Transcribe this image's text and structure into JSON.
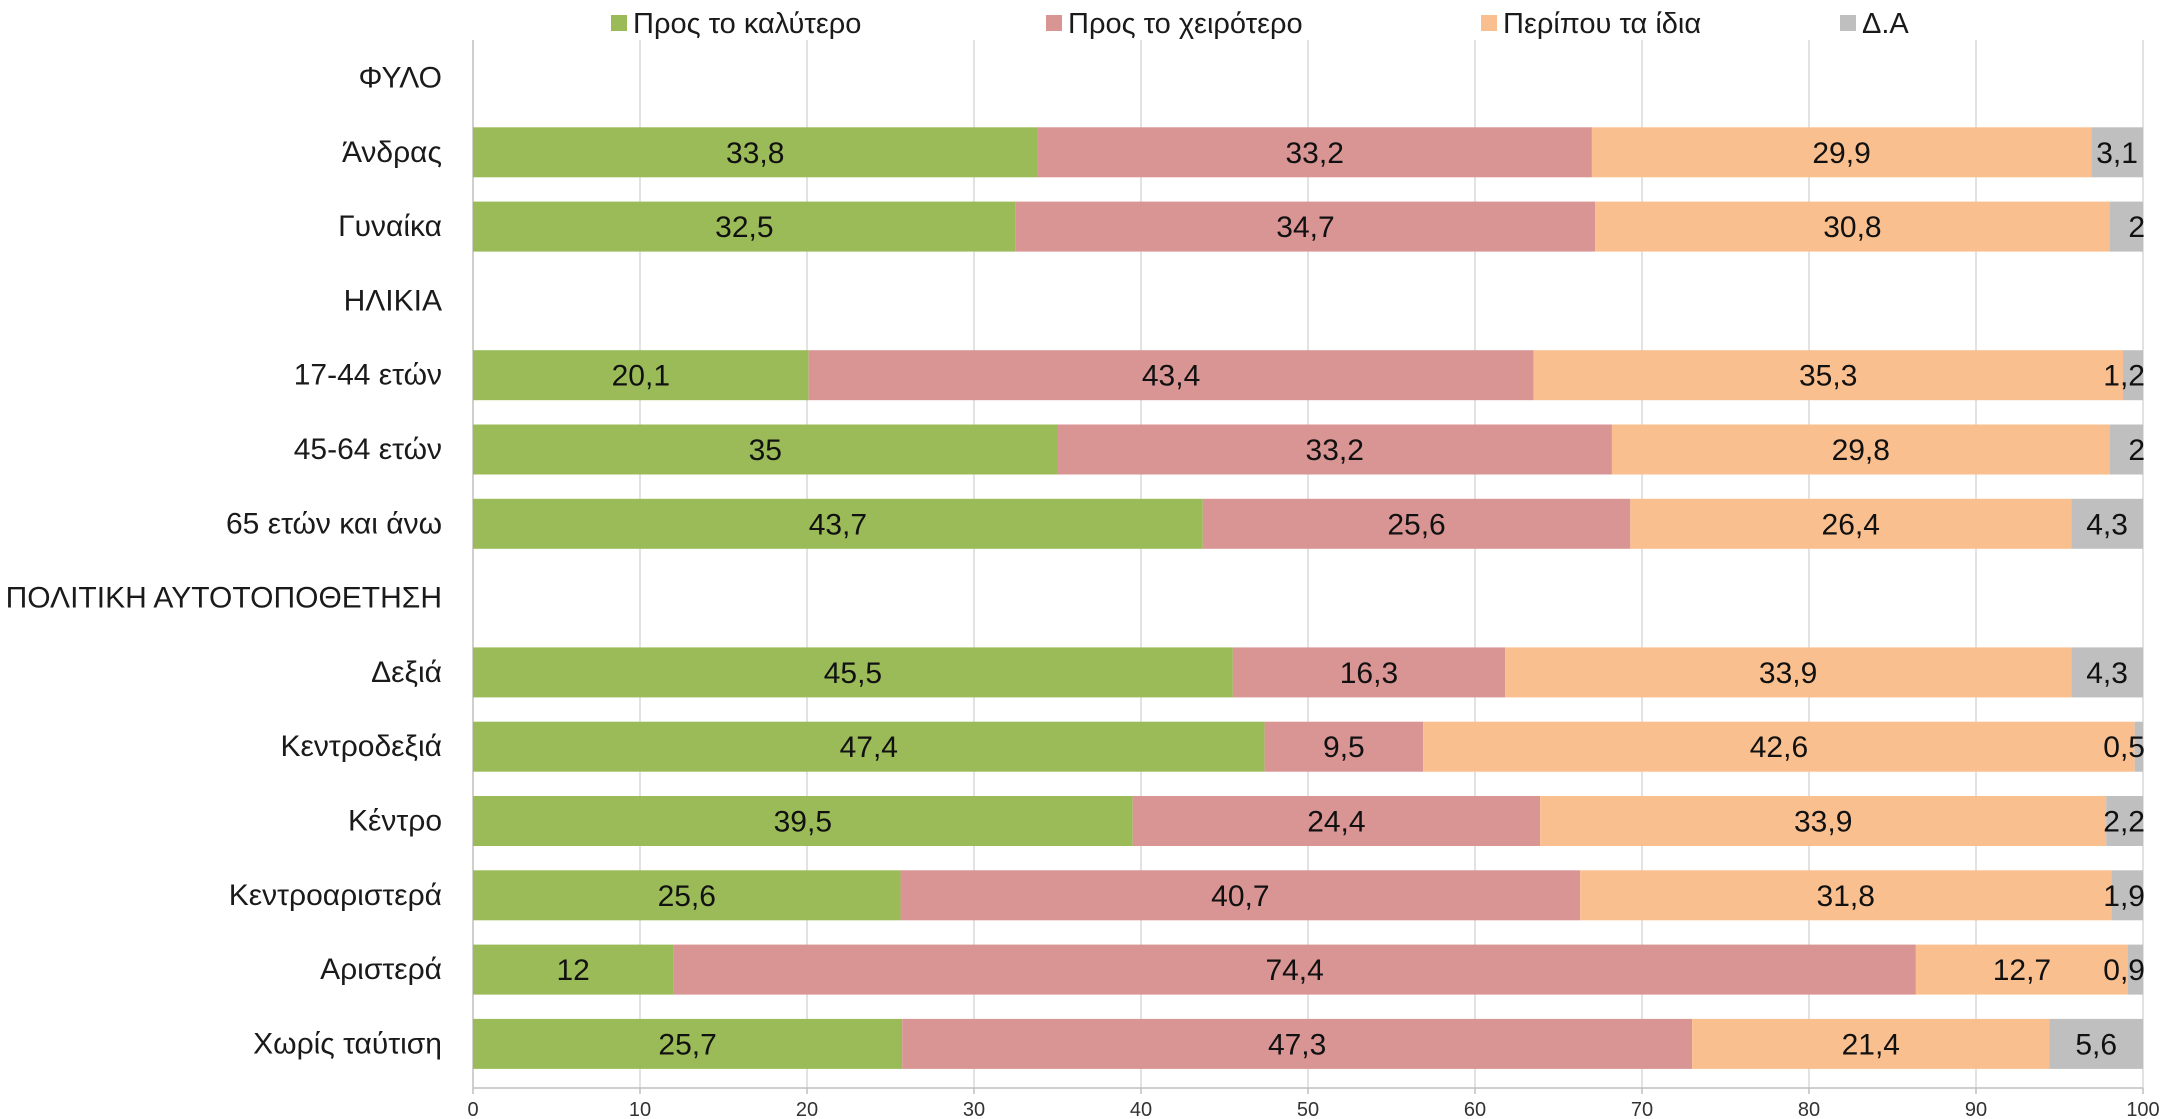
{
  "chart_data": {
    "type": "bar",
    "orientation": "horizontal",
    "stacked": true,
    "categories": [
      "ΦΥΛΟ",
      "Άνδρας",
      "Γυναίκα",
      "ΗΛΙΚΙΑ",
      "17-44 ετών",
      "45-64 ετών",
      "65 ετών και άνω",
      "ΠΟΛΙΤΙΚΗ ΑΥΤΟΤΟΠΟΘΕΤΗΣΗ",
      "Δεξιά",
      "Κεντροδεξιά",
      "Κέντρο",
      "Κεντροαριστερά",
      "Αριστερά",
      "Χωρίς ταύτιση"
    ],
    "series": [
      {
        "name": "Προς το καλύτερο",
        "color": "#9bbb59",
        "values": [
          null,
          33.8,
          32.5,
          null,
          20.1,
          35,
          43.7,
          null,
          45.5,
          47.4,
          39.5,
          25.6,
          12,
          25.7
        ],
        "labels": [
          "",
          "33,8",
          "32,5",
          "",
          "20,1",
          "35",
          "43,7",
          "",
          "45,5",
          "47,4",
          "39,5",
          "25,6",
          "12",
          "25,7"
        ]
      },
      {
        "name": "Προς το χειρότερο",
        "color": "#d99594",
        "values": [
          null,
          33.2,
          34.7,
          null,
          43.4,
          33.2,
          25.6,
          null,
          16.3,
          9.5,
          24.4,
          40.7,
          74.4,
          47.3
        ],
        "labels": [
          "",
          "33,2",
          "34,7",
          "",
          "43,4",
          "33,2",
          "25,6",
          "",
          "16,3",
          "9,5",
          "24,4",
          "40,7",
          "74,4",
          "47,3"
        ]
      },
      {
        "name": "Περίπου τα ίδια",
        "color": "#fabf8f",
        "values": [
          null,
          29.9,
          30.8,
          null,
          35.3,
          29.8,
          26.4,
          null,
          33.9,
          42.6,
          33.9,
          31.8,
          12.7,
          21.4
        ],
        "labels": [
          "",
          "29,9",
          "30,8",
          "",
          "35,3",
          "29,8",
          "26,4",
          "",
          "33,9",
          "42,6",
          "33,9",
          "31,8",
          "12,7",
          "21,4"
        ]
      },
      {
        "name": "Δ.Α",
        "color": "#bfbfbf",
        "values": [
          null,
          3.1,
          2,
          null,
          1.2,
          2,
          4.3,
          null,
          4.3,
          0.5,
          2.2,
          1.9,
          0.9,
          5.6
        ],
        "labels": [
          "",
          "3,1",
          "2",
          "",
          "1,2",
          "2",
          "4,3",
          "",
          "4,3",
          "0,5",
          "2,2",
          "1,9",
          "0,9",
          "5,6"
        ]
      }
    ],
    "xlim": [
      0,
      100
    ],
    "xticks": [
      "0",
      "10",
      "20",
      "30",
      "40",
      "50",
      "60",
      "70",
      "80",
      "90",
      "100"
    ],
    "title": "",
    "xlabel": "",
    "ylabel": "",
    "grid": "vertical",
    "legend_position": "top"
  }
}
